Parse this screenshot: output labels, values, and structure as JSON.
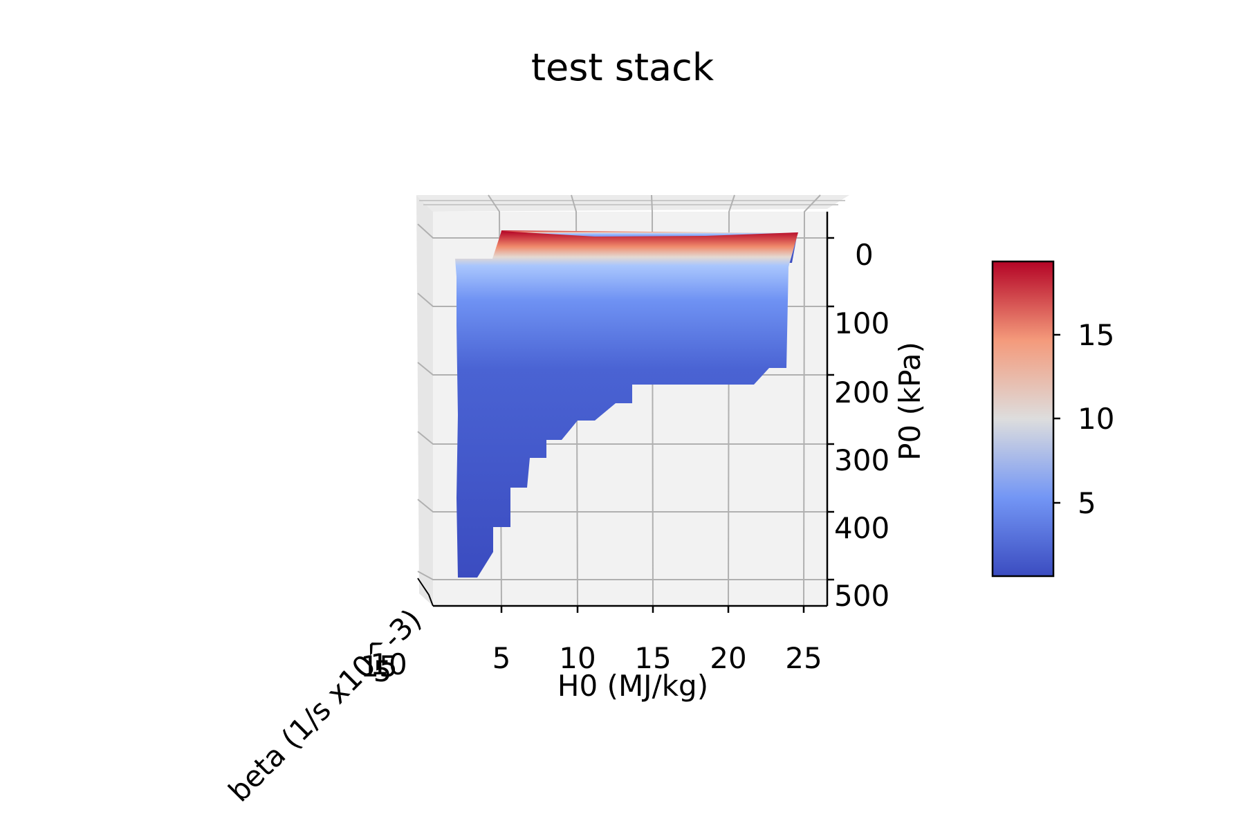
{
  "chart_data": {
    "type": "surface3d",
    "title": "test stack",
    "xlabel": "H0 (MJ/kg)",
    "ylabel": "P0 (kPa)",
    "zlabel": "beta (1/s x10^-3)",
    "xlim": [
      0,
      26
    ],
    "ylim": [
      0,
      520
    ],
    "x_ticks": [
      "5",
      "10",
      "15",
      "20",
      "25"
    ],
    "y_ticks": [
      "0",
      "100",
      "200",
      "300",
      "400",
      "500"
    ],
    "z_ticks": [
      "5",
      "10",
      "15"
    ],
    "grid": true,
    "colormap": "coolwarm",
    "colorbar": {
      "range": [
        0.6,
        19.4
      ],
      "ticks": [
        "5",
        "10",
        "15"
      ],
      "position": "right"
    },
    "surface": {
      "top_edge": {
        "x": [
          2.5,
          24.5
        ],
        "P0": 25,
        "beta_range": [
          0.6,
          19.4
        ]
      },
      "lower_boundary": [
        {
          "x": 24.5,
          "P0": 190
        },
        {
          "x": 22.5,
          "P0": 190
        },
        {
          "x": 21.0,
          "P0": 215
        },
        {
          "x": 13.0,
          "P0": 215
        },
        {
          "x": 12.0,
          "P0": 238
        },
        {
          "x": 10.0,
          "P0": 270
        },
        {
          "x": 8.0,
          "P0": 295
        },
        {
          "x": 6.5,
          "P0": 340
        },
        {
          "x": 5.0,
          "P0": 370
        },
        {
          "x": 4.0,
          "P0": 418
        },
        {
          "x": 3.0,
          "P0": 485
        },
        {
          "x": 1.5,
          "P0": 505
        }
      ]
    }
  },
  "colors": {
    "cmap_low": "#3b4cc0",
    "cmap_mid": "#dddddd",
    "cmap_high": "#b40426",
    "pane": "#f2f2f2",
    "grid": "#b0b0b0"
  }
}
